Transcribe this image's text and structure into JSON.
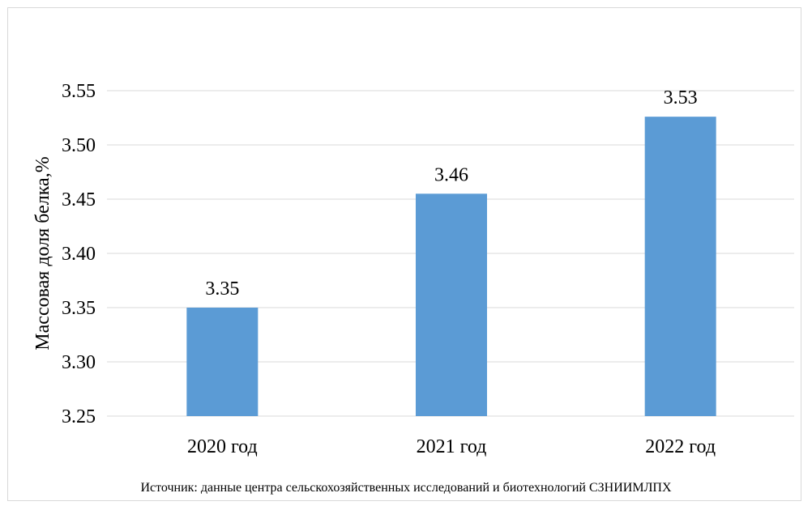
{
  "chart_data": {
    "type": "bar",
    "categories": [
      "2020 год",
      "2021 год",
      "2022 год"
    ],
    "values": [
      3.35,
      3.455,
      3.526
    ],
    "data_labels": [
      "3.35",
      "3.46",
      "3.53"
    ],
    "ylabel": "Массовая доля белка,%",
    "xlabel": "",
    "ylim": [
      3.25,
      3.55
    ],
    "yticks": [
      "3.55",
      "3.50",
      "3.45",
      "3.40",
      "3.35",
      "3.30",
      "3.25"
    ],
    "ytick_values": [
      3.55,
      3.5,
      3.45,
      3.4,
      3.35,
      3.3,
      3.25
    ],
    "grid": true,
    "bar_color": "#5b9bd5",
    "grid_color": "#d9d9d9"
  },
  "source_note": "Источник:  данные  центра сельскохозяйственных исследований и биотехнологий СЗНИИМЛПХ"
}
